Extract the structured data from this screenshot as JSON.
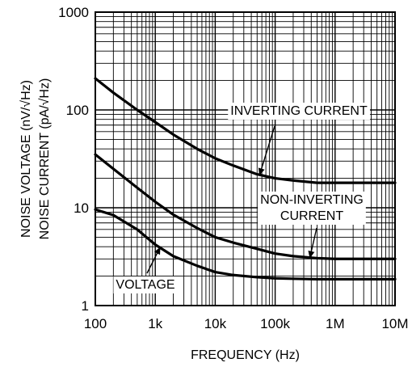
{
  "chart_data": {
    "type": "line",
    "xscale": "log",
    "yscale": "log",
    "xlim": [
      100,
      10000000
    ],
    "ylim": [
      1,
      1000
    ],
    "grid": true,
    "xlabel": "FREQUENCY (Hz)",
    "ylabel_line1": "NOISE VOLTAGE (nV/√Hz)",
    "ylabel_line2": "NOISE CURRENT (pA/√Hz)",
    "xticks": [
      {
        "value": 100,
        "label": "100"
      },
      {
        "value": 1000,
        "label": "1k"
      },
      {
        "value": 10000,
        "label": "10k"
      },
      {
        "value": 100000,
        "label": "100k"
      },
      {
        "value": 1000000,
        "label": "1M"
      },
      {
        "value": 10000000,
        "label": "10M"
      }
    ],
    "yticks": [
      {
        "value": 1,
        "label": "1"
      },
      {
        "value": 10,
        "label": "10"
      },
      {
        "value": 100,
        "label": "100"
      },
      {
        "value": 1000,
        "label": "1000"
      }
    ],
    "series": [
      {
        "name": "INVERTING CURRENT",
        "x": [
          100,
          200,
          500,
          1000,
          2000,
          5000,
          10000,
          20000,
          50000,
          100000,
          200000,
          500000,
          1000000,
          10000000
        ],
        "y": [
          210,
          150,
          100,
          75,
          56,
          40,
          32,
          27,
          22,
          20,
          19,
          18,
          18,
          18
        ]
      },
      {
        "name": "NON-INVERTING CURRENT",
        "x": [
          100,
          200,
          500,
          1000,
          2000,
          5000,
          10000,
          20000,
          50000,
          100000,
          200000,
          500000,
          1000000,
          10000000
        ],
        "y": [
          35,
          25,
          16,
          11.5,
          8.5,
          6.2,
          5,
          4.4,
          3.8,
          3.4,
          3.2,
          3.05,
          3.0,
          3.0
        ]
      },
      {
        "name": "VOLTAGE",
        "x": [
          100,
          200,
          500,
          1000,
          2000,
          5000,
          10000,
          20000,
          50000,
          100000,
          200000,
          500000,
          1000000,
          10000000
        ],
        "y": [
          9.6,
          8.4,
          6.0,
          4.2,
          3.2,
          2.55,
          2.2,
          2.05,
          1.95,
          1.9,
          1.88,
          1.86,
          1.86,
          1.86
        ]
      }
    ],
    "annotations": [
      {
        "lines": [
          "INVERTING CURRENT"
        ],
        "series": "INVERTING CURRENT"
      },
      {
        "lines": [
          "NON-INVERTING",
          "CURRENT"
        ],
        "series": "NON-INVERTING CURRENT"
      },
      {
        "lines": [
          "VOLTAGE"
        ],
        "series": "VOLTAGE"
      }
    ]
  }
}
